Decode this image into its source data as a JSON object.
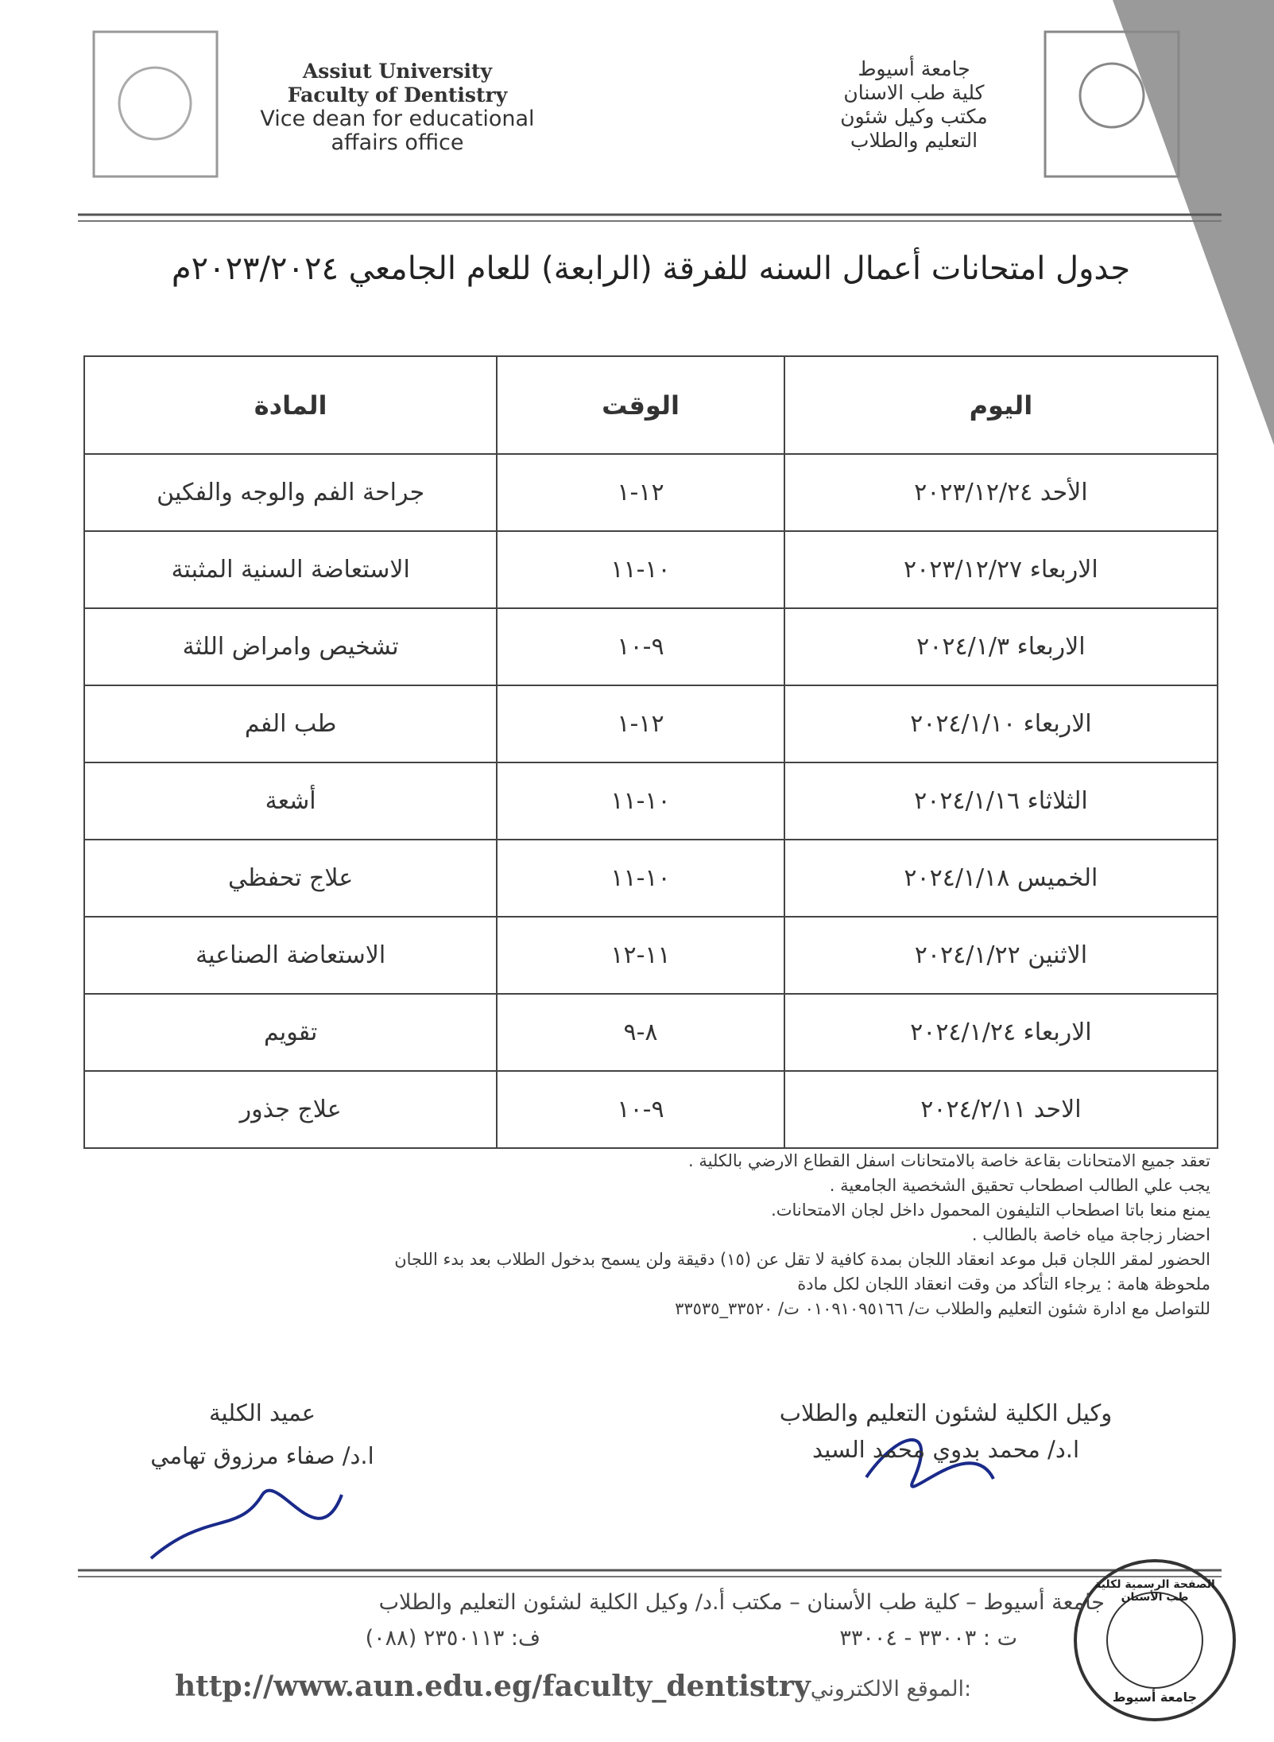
{
  "header": {
    "english": [
      "Assiut University",
      "Faculty of Dentistry",
      "Vice dean for educational",
      "affairs office"
    ],
    "arabic": [
      "جامعة أسيوط",
      "كلية طب الاسنان",
      "مكتب وكيل شئون",
      "التعليم والطلاب"
    ]
  },
  "title": "جدول امتحانات أعمال السنه للفرقة (الرابعة) للعام الجامعي ٢٠٢٣/٢٠٢٤م",
  "table": {
    "headers": [
      "اليوم",
      "الوقت",
      "المادة"
    ],
    "rows": [
      [
        "الأحد ٢٠٢٣/١٢/٢٤",
        "١-١٢",
        "جراحة الفم والوجه والفكين"
      ],
      [
        "الاربعاء ٢٠٢٣/١٢/٢٧",
        "١١-١٠",
        "الاستعاضة السنية المثبتة"
      ],
      [
        "الاربعاء ٢٠٢٤/١/٣",
        "١٠-٩",
        "تشخيص وامراض اللثة"
      ],
      [
        "الاربعاء ٢٠٢٤/١/١٠",
        "١-١٢",
        "طب الفم"
      ],
      [
        "الثلاثاء ٢٠٢٤/١/١٦",
        "١١-١٠",
        "أشعة"
      ],
      [
        "الخميس ٢٠٢٤/١/١٨",
        "١١-١٠",
        "علاج تحفظي"
      ],
      [
        "الاثنين ٢٠٢٤/١/٢٢",
        "١٢-١١",
        "الاستعاضة الصناعية"
      ],
      [
        "الاربعاء ٢٠٢٤/١/٢٤",
        "٩-٨",
        "تقويم"
      ],
      [
        "الاحد ٢٠٢٤/٢/١١",
        "١٠-٩",
        "علاج جذور"
      ]
    ]
  },
  "notes": [
    "تعقد جميع الامتحانات بقاعة خاصة بالامتحانات اسفل القطاع الارضي بالكلية .",
    "يجب علي الطالب اصطحاب تحقيق الشخصية الجامعية .",
    "يمنع منعا باتا اصطحاب التليفون المحمول داخل لجان الامتحانات.",
    "احضار زجاجة مياه خاصة بالطالب .",
    "الحضور لمقر اللجان قبل موعد انعقاد اللجان بمدة كافية لا تقل عن (١٥) دقيقة ولن يسمح بدخول الطلاب بعد بدء اللجان",
    "ملحوظة هامة : يرجاء التأكد من وقت انعقاد اللجان لكل مادة",
    "للتواصل مع ادارة شئون التعليم والطلاب ت/ ٠١٠٩١٠٩٥١٦٦ ت/ ٣٣٥٢٠_٣٣٥٣٥"
  ],
  "signatures": [
    {
      "title": "وكيل الكلية لشئون التعليم والطلاب",
      "name": "ا.د/ محمد بدوي محمد السيد"
    },
    {
      "title": "عميد الكلية",
      "name": "ا.د/ صفاء مرزوق تهامي"
    }
  ],
  "footer": {
    "address": "جامعة أسيوط – كلية طب الأسنان – مكتب أ.د/ وكيل الكلية لشئون التعليم والطلاب",
    "phone": "ت : ٣٣٠٠٣ - ٣٣٠٠٤",
    "fax": "ف: ٢٣٥٠١١٣ (٠٨٨)",
    "url": "http://www.aun.edu.eg/faculty_dentistry",
    "website_label": ":الموقع الالكتروني"
  },
  "stamp": {
    "top": "الصفحة الرسمية لكلية طب الأسنان",
    "bottom": "جامعة أسيوط"
  }
}
